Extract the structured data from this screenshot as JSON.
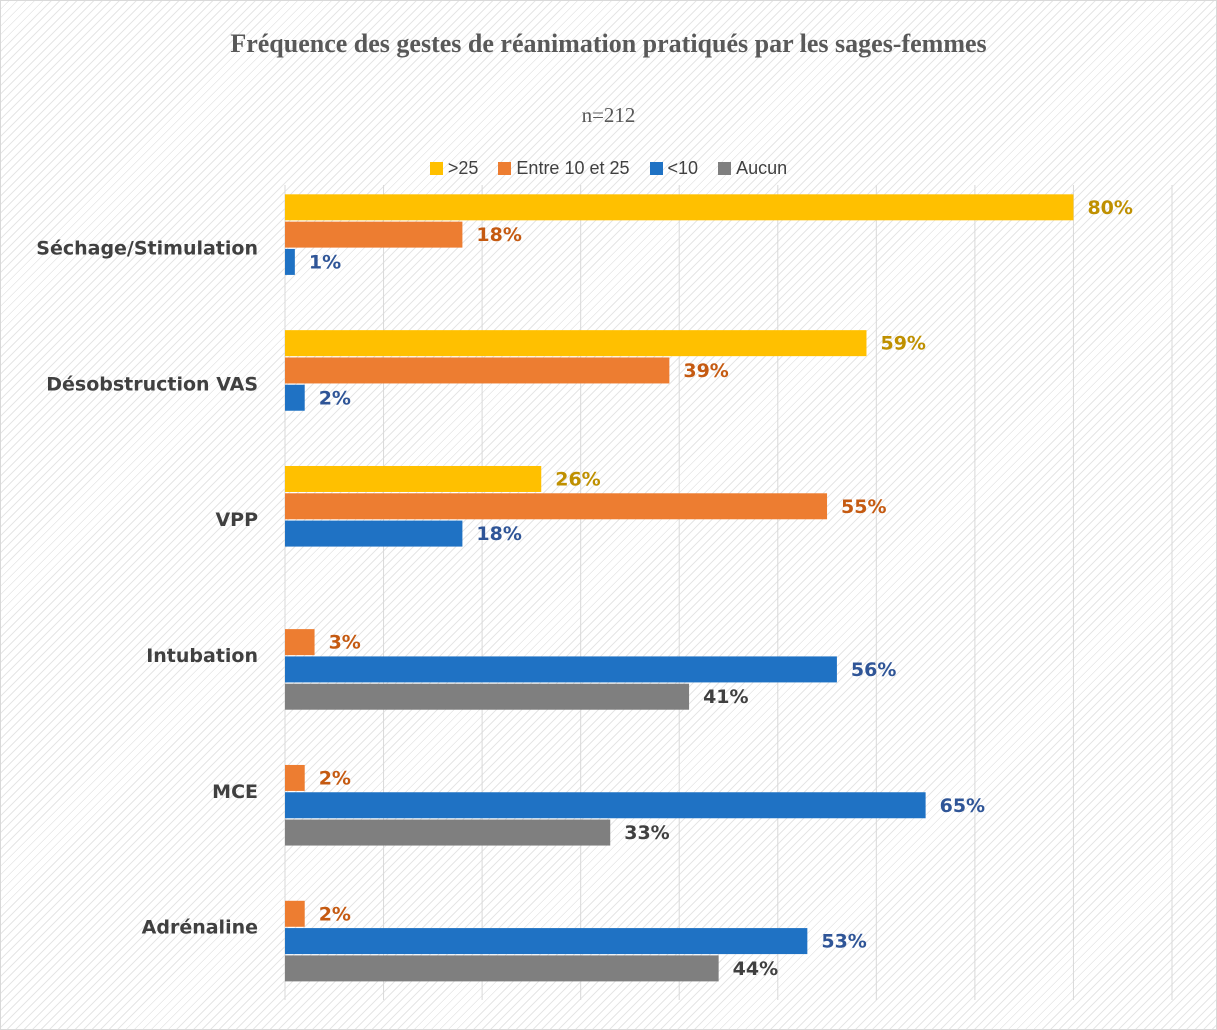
{
  "chart_data": {
    "type": "bar",
    "orientation": "horizontal",
    "title": "Fréquence des gestes de réanimation pratiqués par les sages-femmes",
    "subtitle": "n=212",
    "categories": [
      "Séchage/Stimulation",
      "Désobstruction VAS",
      "VPP",
      "Intubation",
      "MCE",
      "Adrénaline"
    ],
    "series": [
      {
        "name": ">25",
        "color": "#ffc000",
        "label_color": "#bf9000",
        "values": [
          80,
          59,
          26,
          null,
          null,
          null
        ],
        "value_labels": [
          "80%",
          "59%",
          "26%",
          null,
          null,
          null
        ]
      },
      {
        "name": "Entre 10 et 25",
        "color": "#ed7d31",
        "label_color": "#c55a11",
        "values": [
          18,
          39,
          55,
          3,
          2,
          2
        ],
        "value_labels": [
          "18%",
          "39%",
          "55%",
          "3%",
          "2%",
          "2%"
        ]
      },
      {
        "name": "<10",
        "color": "#1f72c4",
        "label_color": "#2f5597",
        "values": [
          1,
          2,
          18,
          56,
          65,
          53
        ],
        "value_labels": [
          "1%",
          "2%",
          "18%",
          "56%",
          "65%",
          "53%"
        ]
      },
      {
        "name": "Aucun",
        "color": "#7f7f7f",
        "label_color": "#404040",
        "values": [
          null,
          null,
          null,
          41,
          33,
          44
        ],
        "value_labels": [
          null,
          null,
          null,
          "41%",
          "33%",
          "44%"
        ]
      }
    ],
    "xlim": [
      0,
      90
    ],
    "xticks": [
      0,
      10,
      20,
      30,
      40,
      50,
      60,
      70,
      80,
      90
    ],
    "grid": true,
    "legend": "top"
  }
}
